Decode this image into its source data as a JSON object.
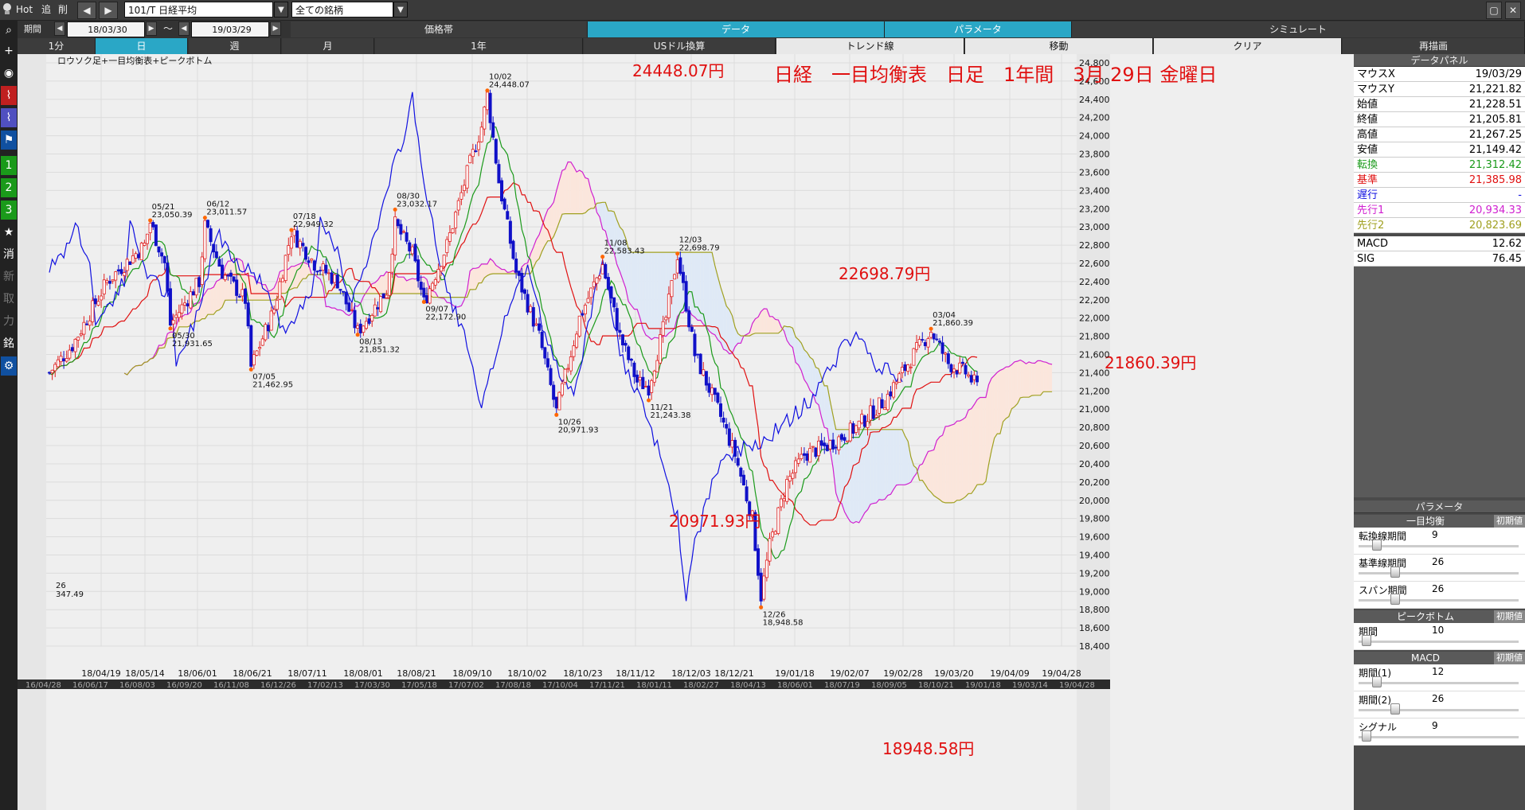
{
  "toolbar": {
    "hot": "Hot",
    "add": "追",
    "del": "削",
    "symbol": "101/T 日経平均",
    "list": "全ての銘柄",
    "period_label": "期間",
    "date_from": "18/03/30",
    "date_to": "19/03/29",
    "tilde": "～"
  },
  "tabs_top": [
    "価格帯",
    "データ",
    "パラメータ",
    "シミュレート"
  ],
  "tabs_bottom": [
    "1分",
    "日",
    "週",
    "月",
    "1年",
    "USドル換算",
    "トレンド線",
    "移動",
    "クリア",
    "再描画"
  ],
  "chart": {
    "legend": "ロウソク足+一目均衡表+ピークボトム",
    "headline": "日経　一目均衡表　日足　1年間　3月 29日 金曜日",
    "y_ticks": [
      "24,800",
      "24,600",
      "24,400",
      "24,200",
      "24,000",
      "23,800",
      "23,600",
      "23,400",
      "23,200",
      "23,000",
      "22,800",
      "22,600",
      "22,400",
      "22,200",
      "22,000",
      "21,800",
      "21,600",
      "21,400",
      "21,200",
      "21,000",
      "20,800",
      "20,600",
      "20,400",
      "20,200",
      "20,000",
      "19,800",
      "19,600",
      "19,400",
      "19,200",
      "19,000",
      "18,800",
      "18,600",
      "18,400"
    ],
    "x_ticks": [
      "18/04/19",
      "18/05/14",
      "18/06/01",
      "18/06/21",
      "18/07/11",
      "18/08/01",
      "18/08/21",
      "18/09/10",
      "18/10/02",
      "18/10/23",
      "18/11/12",
      "18/12/03",
      "18/12/21",
      "19/01/18",
      "19/02/07",
      "19/02/28",
      "19/03/20",
      "19/04/09",
      "19/04/28"
    ],
    "x_ticks2": [
      "16/04/28",
      "16/06/17",
      "16/08/03",
      "16/09/20",
      "16/11/08",
      "16/12/26",
      "17/02/13",
      "17/03/30",
      "17/05/18",
      "17/07/02",
      "17/08/18",
      "17/10/04",
      "17/11/21",
      "18/01/11",
      "18/02/27",
      "18/04/13",
      "18/06/01",
      "18/07/19",
      "18/09/05",
      "18/10/21",
      "19/01/18",
      "19/03/14",
      "19/04/28"
    ],
    "big_labels": [
      {
        "text": "24448.07円",
        "date": "10/02",
        "value": 24448.07
      },
      {
        "text": "22698.79円",
        "date": "12/03",
        "value": 22698.79
      },
      {
        "text": "21860.39円",
        "date": "03/04",
        "value": 21860.39
      },
      {
        "text": "20971.93円",
        "date": "10/26",
        "value": 20971.93
      },
      {
        "text": "18948.58円",
        "date": "12/26",
        "value": 18948.58
      }
    ],
    "peaks": [
      {
        "date": "05/21",
        "value": "23,050.39"
      },
      {
        "date": "06/12",
        "value": "23,011.57"
      },
      {
        "date": "07/18",
        "value": "22,949.32"
      },
      {
        "date": "08/30",
        "value": "23,032.17"
      },
      {
        "date": "10/02",
        "value": "24,448.07"
      },
      {
        "date": "11/08",
        "value": "22,583.43"
      },
      {
        "date": "12/03",
        "value": "22,698.79"
      },
      {
        "date": "03/04",
        "value": "21,860.39"
      }
    ],
    "bottoms": [
      {
        "date": "05/30",
        "value": "21,931.65"
      },
      {
        "date": "07/05",
        "value": "21,462.95"
      },
      {
        "date": "08/13",
        "value": "21,851.32"
      },
      {
        "date": "09/07",
        "value": "22,172.90"
      },
      {
        "date": "10/26",
        "value": "20,971.93"
      },
      {
        "date": "11/21",
        "value": "21,243.38"
      },
      {
        "date": "12/26",
        "value": "18,948.58"
      }
    ],
    "left_note": {
      "top": "26",
      "bottom": "347.49"
    }
  },
  "data_panel": {
    "title": "データパネル",
    "rows": [
      {
        "label": "マウスX",
        "value": "19/03/29",
        "color": "#000000"
      },
      {
        "label": "マウスY",
        "value": "21,221.82",
        "color": "#000000"
      },
      {
        "label": "始値",
        "value": "21,228.51",
        "color": "#000000"
      },
      {
        "label": "終値",
        "value": "21,205.81",
        "color": "#000000"
      },
      {
        "label": "高値",
        "value": "21,267.25",
        "color": "#000000"
      },
      {
        "label": "安値",
        "value": "21,149.42",
        "color": "#000000"
      },
      {
        "label": "転換",
        "value": "21,312.42",
        "color": "#1a9a1a"
      },
      {
        "label": "基準",
        "value": "21,385.98",
        "color": "#e01010"
      },
      {
        "label": "遅行",
        "value": "-",
        "color": "#1010e0"
      },
      {
        "label": "先行1",
        "value": "20,934.33",
        "color": "#d020d0"
      },
      {
        "label": "先行2",
        "value": "20,823.69",
        "color": "#a0a020"
      },
      {
        "label": "MACD",
        "value": "12.62",
        "color": "#000000"
      },
      {
        "label": "SIG",
        "value": "76.45",
        "color": "#000000"
      }
    ]
  },
  "param_panel": {
    "title": "パラメータ",
    "reset": "初期値",
    "sections": [
      {
        "name": "一目均衡",
        "rows": [
          {
            "label": "転換線期間",
            "value": "9",
            "level": 0.07
          },
          {
            "label": "基準線期間",
            "value": "26",
            "level": 0.2
          },
          {
            "label": "スパン期間",
            "value": "26",
            "level": 0.2
          }
        ]
      },
      {
        "name": "ピークボトム",
        "rows": [
          {
            "label": "期間",
            "value": "10",
            "level": 0.0
          }
        ]
      },
      {
        "name": "MACD",
        "rows": [
          {
            "label": "期間(1)",
            "value": "12",
            "level": 0.07
          },
          {
            "label": "期間(2)",
            "value": "26",
            "level": 0.2
          },
          {
            "label": "シグナル",
            "value": "9",
            "level": 0.0
          }
        ]
      }
    ]
  },
  "colors": {
    "up": "#e02020",
    "down": "#1010c8",
    "tenkan": "#1a9a1a",
    "kijun": "#e01010",
    "chikou": "#1010e0",
    "senkou1": "#d020d0",
    "senkou2": "#a0a020",
    "accent": "#2aa7c6"
  }
}
